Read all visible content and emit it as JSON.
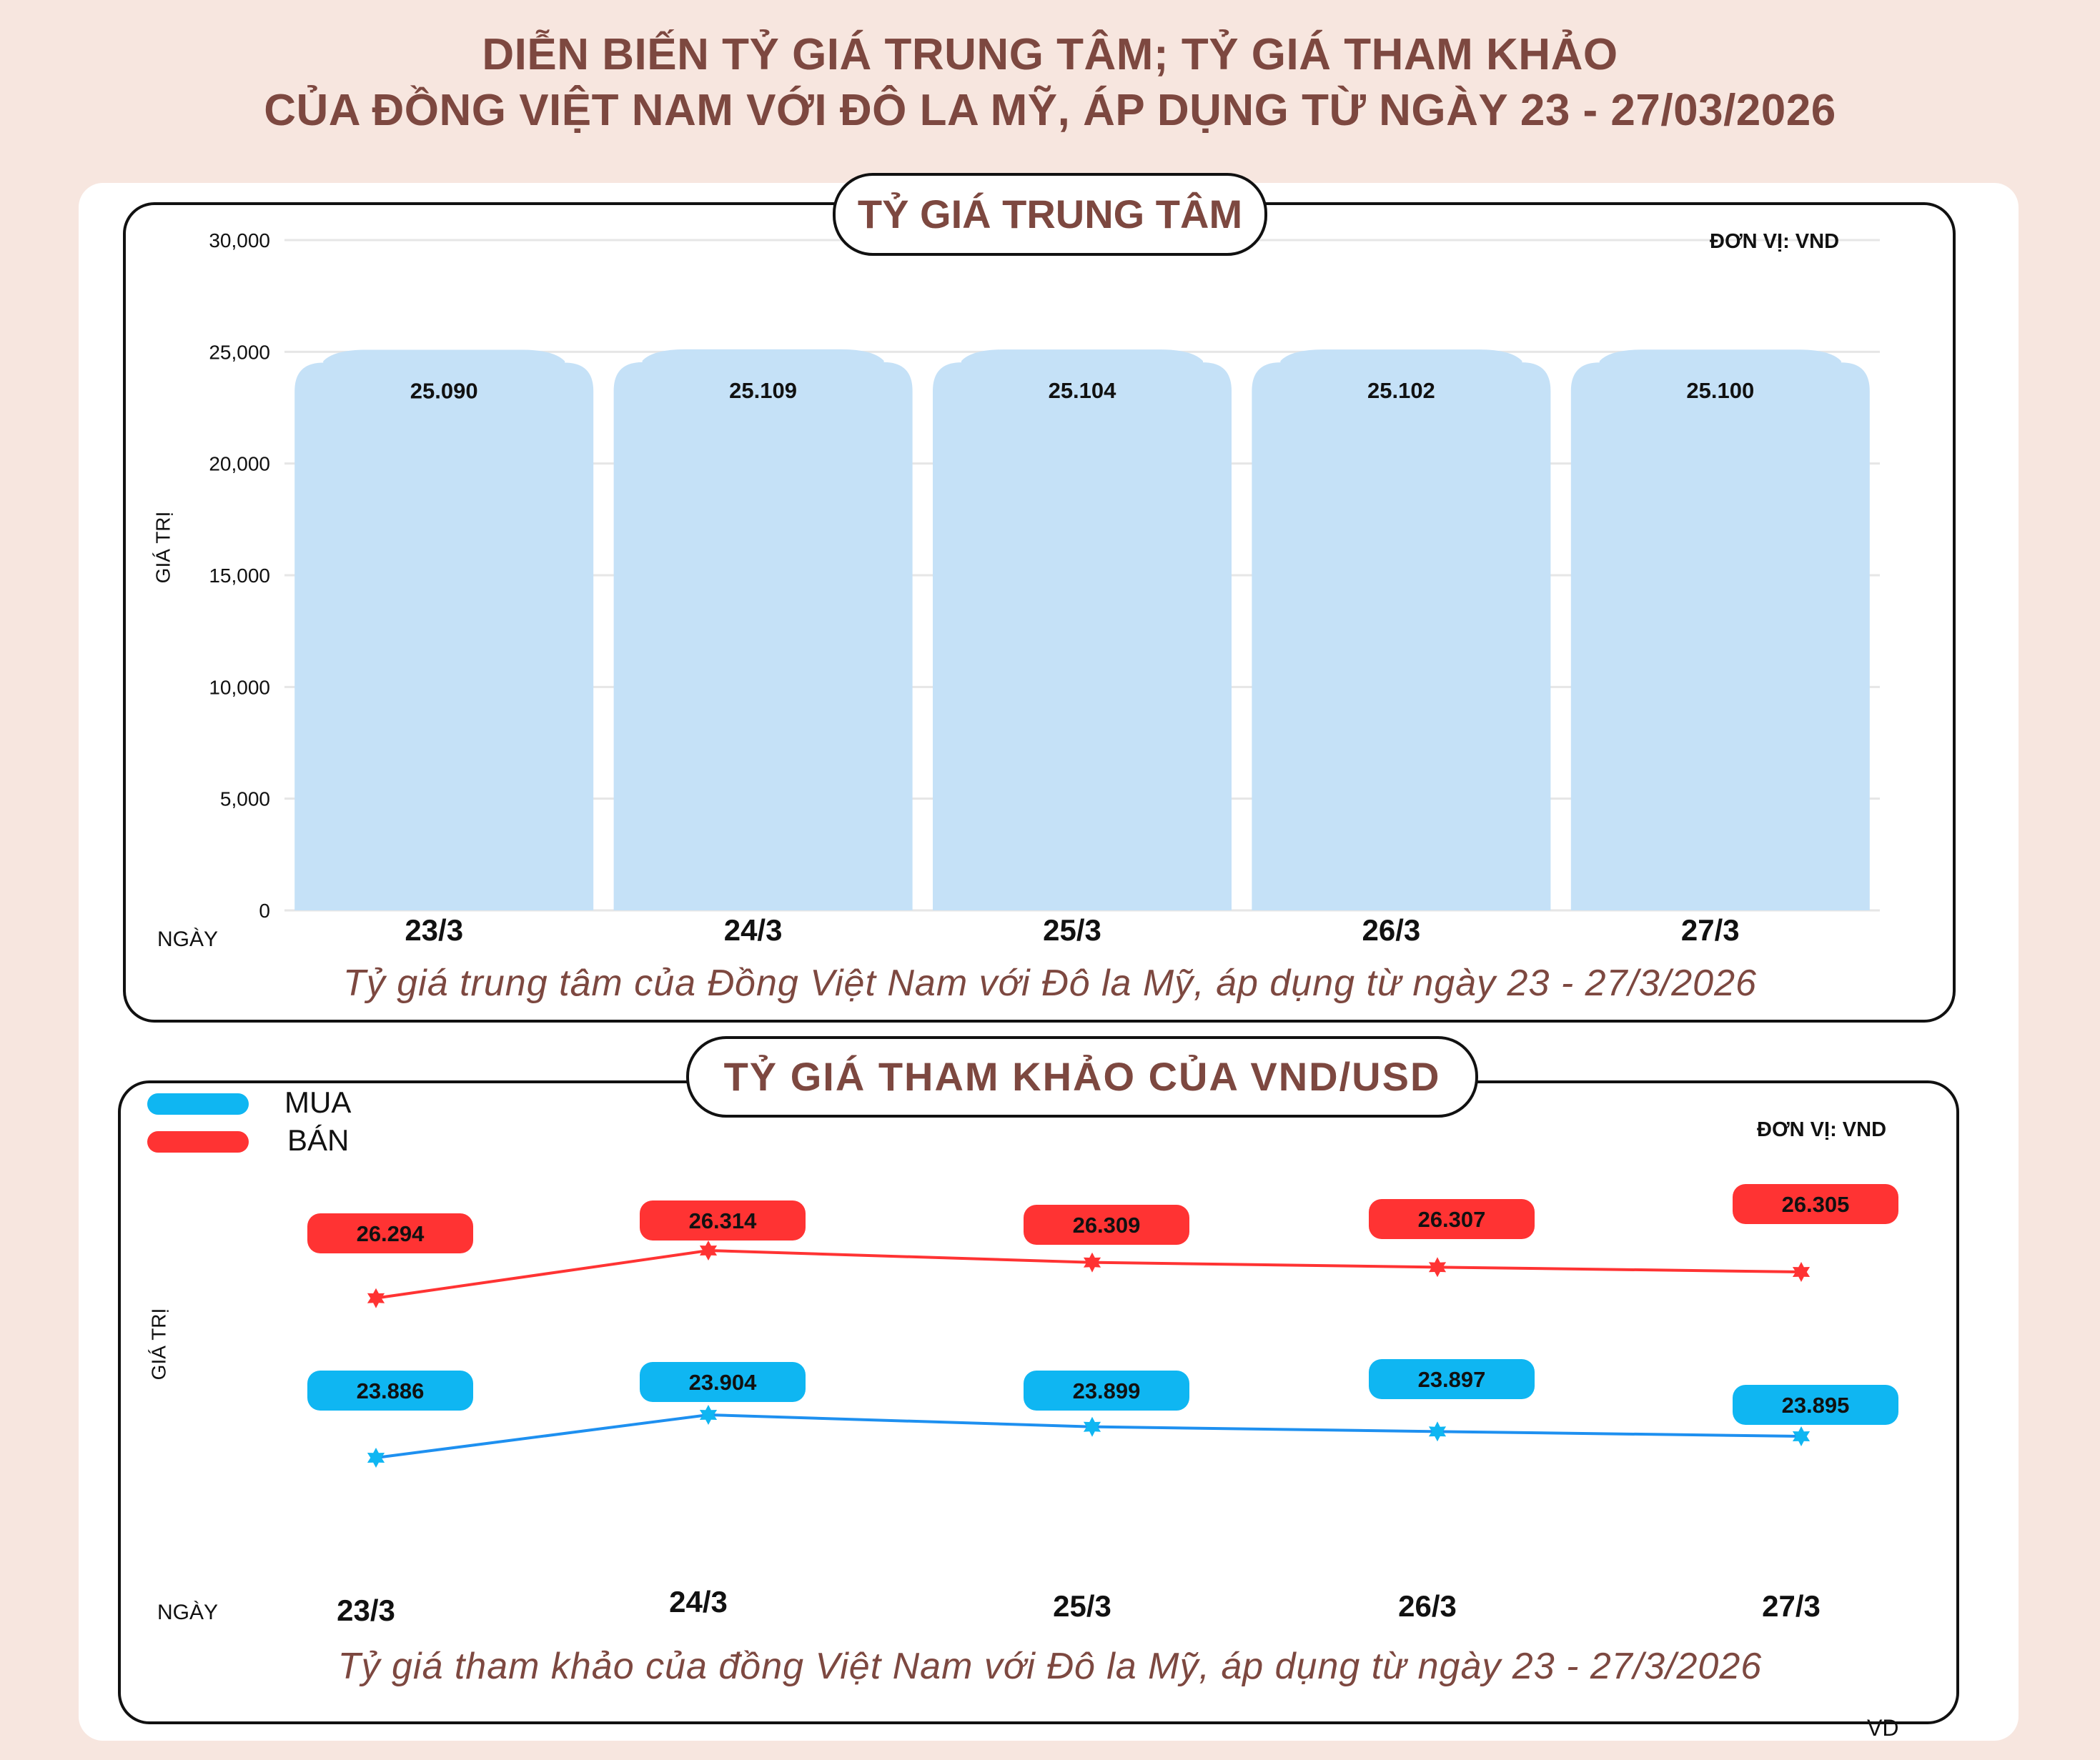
{
  "title": {
    "line1": "DIỄN BIẾN TỶ GIÁ TRUNG TÂM; TỶ GIÁ THAM KHẢO",
    "line2": "CỦA ĐỒNG VIỆT NAM VỚI ĐÔ LA MỸ, ÁP DỤNG TỪ NGÀY 23 - 27/03/2026"
  },
  "colors": {
    "title": "#7d4840",
    "bar": "#c5e1f7",
    "mua": "#0fb6f2",
    "ban": "#ff3333",
    "background": "#f7e6df"
  },
  "watermark": "VD",
  "chart_data": [
    {
      "type": "bar",
      "title": "TỶ GIÁ TRUNG TÂM",
      "unit_label": "ĐƠN VỊ: VND",
      "xlabel": "NGÀY",
      "ylabel": "GIÁ TRỊ",
      "caption": "Tỷ giá trung tâm của Đồng Việt Nam với Đô la Mỹ, áp dụng từ ngày 23 - 27/3/2026",
      "categories": [
        "23/3",
        "24/3",
        "25/3",
        "26/3",
        "27/3"
      ],
      "values": [
        25090,
        25109,
        25104,
        25102,
        25100
      ],
      "value_labels": [
        "25.090",
        "25.109",
        "25.104",
        "25.102",
        "25.100"
      ],
      "ylim": [
        0,
        30000
      ],
      "yticks": [
        0,
        5000,
        10000,
        15000,
        20000,
        25000,
        30000
      ],
      "ytick_labels": [
        "0",
        "5,000",
        "10,000",
        "15,000",
        "20,000",
        "25,000",
        "30,000"
      ],
      "grid": true
    },
    {
      "type": "line",
      "title": "TỶ GIÁ THAM KHẢO CỦA VND/USD",
      "unit_label": "ĐƠN VỊ: VND",
      "xlabel": "NGÀY",
      "ylabel": "GIÁ TRỊ",
      "caption": "Tỷ giá tham khảo của đồng Việt Nam với Đô la Mỹ, áp dụng từ ngày 23 - 27/3/2026",
      "categories": [
        "23/3",
        "24/3",
        "25/3",
        "26/3",
        "27/3"
      ],
      "legend_position": "top-left",
      "series": [
        {
          "name": "MUA",
          "values": [
            23886,
            23904,
            23899,
            23897,
            23895
          ],
          "value_labels": [
            "23.886",
            "23.904",
            "23.899",
            "23.897",
            "23.895"
          ]
        },
        {
          "name": "BÁN",
          "values": [
            26294,
            26314,
            26309,
            26307,
            26305
          ],
          "value_labels": [
            "26.294",
            "26.314",
            "26.309",
            "26.307",
            "26.305"
          ]
        }
      ],
      "grid": false
    }
  ]
}
